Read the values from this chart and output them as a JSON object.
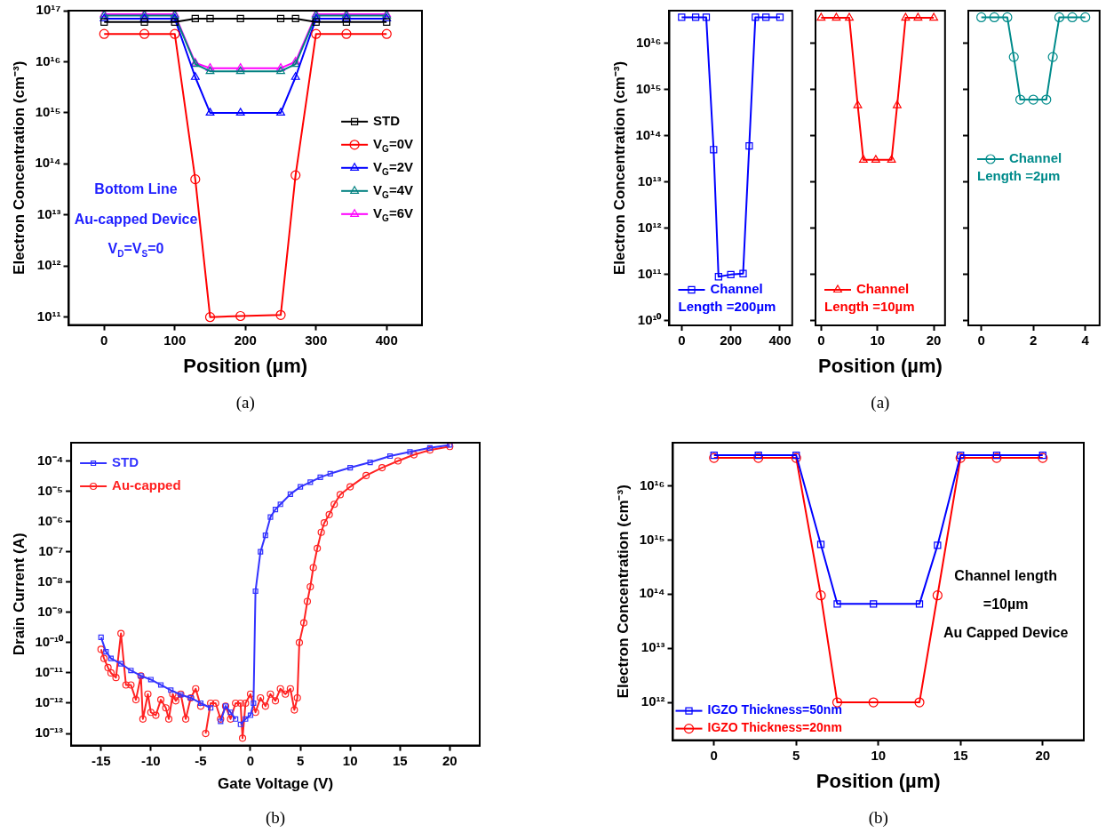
{
  "chart_data": [
    {
      "type": "line",
      "xlabel": "Position (µm)",
      "ylabel": "Electron Concentration (cm⁻³)",
      "log": true,
      "legend": "right",
      "xlim": [
        -50,
        450
      ],
      "xticks": [
        0,
        100,
        200,
        300,
        400
      ],
      "ylim": [
        70000000000.0,
        1e+17
      ],
      "yticks": [
        {
          "value": 100000000000.0,
          "label": "10¹¹"
        },
        {
          "value": 1000000000000.0,
          "label": "10¹²"
        },
        {
          "value": 10000000000000.0,
          "label": "10¹³"
        },
        {
          "value": 100000000000000.0,
          "label": "10¹⁴"
        },
        {
          "value": 1000000000000000.0,
          "label": "10¹⁵"
        },
        {
          "value": 1e+16,
          "label": "10¹⁶"
        },
        {
          "value": 1e+17,
          "label": "10¹⁷"
        }
      ],
      "x": [
        0,
        57,
        100,
        129,
        150,
        193,
        250,
        271,
        300,
        343,
        400
      ],
      "series": [
        {
          "name": "STD",
          "color": "#000000",
          "marker": "square",
          "values": [
            6e+16,
            6e+16,
            6e+16,
            7e+16,
            7e+16,
            7e+16,
            7e+16,
            7e+16,
            6e+16,
            6e+16,
            6e+16
          ]
        },
        {
          "name": "V$_{G}$=0V",
          "color": "#ff0000",
          "marker": "circle",
          "values": [
            3.5e+16,
            3.5e+16,
            3.5e+16,
            50000000000000.0,
            100000000000.0,
            105000000000.0,
            110000000000.0,
            60000000000000.0,
            3.5e+16,
            3.5e+16,
            3.5e+16
          ]
        },
        {
          "name": "V$_{G}$=2V",
          "color": "#0000ff",
          "marker": "triangle",
          "values": [
            7e+16,
            7e+16,
            7e+16,
            5000000000000000.0,
            1000000000000000.0,
            1000000000000000.0,
            1000000000000000.0,
            5000000000000000.0,
            7e+16,
            7e+16,
            7e+16
          ]
        },
        {
          "name": "V$_{G}$=4V",
          "color": "#008080",
          "marker": "triangle",
          "values": [
            8e+16,
            8e+16,
            8e+16,
            9000000000000000.0,
            6500000000000000.0,
            6500000000000000.0,
            6500000000000000.0,
            9000000000000000.0,
            8e+16,
            8e+16,
            8e+16
          ]
        },
        {
          "name": "V$_{G}$=6V",
          "color": "#ff00ff",
          "marker": "triangle",
          "values": [
            8.5e+16,
            8.5e+16,
            8.5e+16,
            9500000000000000.0,
            7500000000000000.0,
            7500000000000000.0,
            7500000000000000.0,
            1e+16,
            8.5e+16,
            8.5e+16,
            8.5e+16
          ]
        }
      ],
      "annotations": [
        "Bottom Line",
        "Au-capped Device",
        "V$_{D}$=V$_{S}$=0",
        "(a)"
      ]
    },
    {
      "type": "line",
      "ylabel": "Electron Concentration (cm⁻³)",
      "log": true,
      "legend": "bottom left",
      "xlim": [
        -50,
        450
      ],
      "xticks": [
        0,
        200,
        400
      ],
      "ylim": [
        8000000000.0,
        5e+16
      ],
      "yticks": [
        {
          "value": 10000000000.0,
          "label": "10¹⁰"
        },
        {
          "value": 100000000000.0,
          "label": "10¹¹"
        },
        {
          "value": 1000000000000.0,
          "label": "10¹²"
        },
        {
          "value": 10000000000000.0,
          "label": "10¹³"
        },
        {
          "value": 100000000000000.0,
          "label": "10¹⁴"
        },
        {
          "value": 1000000000000000.0,
          "label": "10¹⁵"
        },
        {
          "value": 1e+16,
          "label": "10¹⁶"
        }
      ],
      "x": [
        0,
        57,
        100,
        130,
        150,
        200,
        250,
        275,
        300,
        343,
        400
      ],
      "series": [
        {
          "name": "Channel Length =200µm",
          "color": "#0000ff",
          "marker": "square",
          "values": [
            3.6e+16,
            3.6e+16,
            3.6e+16,
            50000000000000.0,
            90000000000.0,
            100000000000.0,
            105000000000.0,
            60000000000000.0,
            3.6e+16,
            3.6e+16,
            3.6e+16
          ]
        }
      ]
    },
    {
      "type": "line",
      "xlabel": "Position (µm)",
      "log": true,
      "legend": "bottom left",
      "tick_labels": "x",
      "xlim": [
        -1,
        22
      ],
      "xticks": [
        0,
        10,
        20
      ],
      "ylim": [
        8000000000.0,
        5e+16
      ],
      "yticks": [
        {
          "value": 10000000000.0,
          "label": null
        },
        {
          "value": 100000000000.0,
          "label": null
        },
        {
          "value": 1000000000000.0,
          "label": null
        },
        {
          "value": 10000000000000.0,
          "label": null
        },
        {
          "value": 100000000000000.0,
          "label": null
        },
        {
          "value": 1000000000000000.0,
          "label": null
        },
        {
          "value": 1e+16,
          "label": null
        }
      ],
      "x": [
        0,
        2.7,
        5,
        6.5,
        7.5,
        9.7,
        12.5,
        13.5,
        15,
        17.2,
        20
      ],
      "series": [
        {
          "name": "Channel Length =10µm",
          "color": "#ff0000",
          "marker": "triangle",
          "values": [
            3.5e+16,
            3.5e+16,
            3.5e+16,
            450000000000000.0,
            30000000000000.0,
            30000000000000.0,
            30000000000000.0,
            450000000000000.0,
            3.5e+16,
            3.5e+16,
            3.5e+16
          ]
        }
      ],
      "annotations": [
        "(a)"
      ]
    },
    {
      "type": "line",
      "log": true,
      "legend": "left",
      "tick_labels": "x",
      "xlim": [
        -0.5,
        4.55
      ],
      "xticks": [
        0,
        2,
        4
      ],
      "ylim": [
        8000000000.0,
        5e+16
      ],
      "yticks": [
        {
          "value": 10000000000.0,
          "label": null
        },
        {
          "value": 100000000000.0,
          "label": null
        },
        {
          "value": 1000000000000.0,
          "label": null
        },
        {
          "value": 10000000000000.0,
          "label": null
        },
        {
          "value": 100000000000000.0,
          "label": null
        },
        {
          "value": 1000000000000000.0,
          "label": null
        },
        {
          "value": 1e+16,
          "label": null
        }
      ],
      "x": [
        0,
        0.5,
        1,
        1.25,
        1.5,
        2,
        2.5,
        2.75,
        3,
        3.5,
        4
      ],
      "series": [
        {
          "name": "Channel Length =2µm",
          "color": "#008b8b",
          "marker": "circle",
          "values": [
            3.6e+16,
            3.6e+16,
            3.6e+16,
            5000000000000000.0,
            600000000000000.0,
            600000000000000.0,
            600000000000000.0,
            5000000000000000.0,
            3.6e+16,
            3.6e+16,
            3.6e+16
          ]
        }
      ]
    },
    {
      "type": "line",
      "xlabel": "Gate Voltage (V)",
      "ylabel": "Drain Current (A)",
      "log": true,
      "legend": "top left",
      "xlim": [
        -18,
        23
      ],
      "xticks": [
        -15,
        -10,
        -5,
        0,
        5,
        10,
        15,
        20
      ],
      "ylim": [
        4e-14,
        0.0004
      ],
      "yticks": [
        {
          "value": 1e-13,
          "label": "10⁻¹³"
        },
        {
          "value": 1e-12,
          "label": "10⁻¹²"
        },
        {
          "value": 1e-11,
          "label": "10⁻¹¹"
        },
        {
          "value": 1e-10,
          "label": "10⁻¹⁰"
        },
        {
          "value": 1e-09,
          "label": "10⁻⁹"
        },
        {
          "value": 1e-08,
          "label": "10⁻⁸"
        },
        {
          "value": 1e-07,
          "label": "10⁻⁷"
        },
        {
          "value": 1e-06,
          "label": "10⁻⁶"
        },
        {
          "value": 1e-05,
          "label": "10⁻⁵"
        },
        {
          "value": 0.0001,
          "label": "10⁻⁴"
        }
      ],
      "series": [
        {
          "name": "STD",
          "color": "#3333ff",
          "marker": "square",
          "x": [
            -15,
            -14.5,
            -14,
            -13,
            -12,
            -11,
            -10,
            -9,
            -8,
            -7,
            -6,
            -5,
            -4,
            -3.5,
            -3,
            -2.5,
            -2,
            -1.5,
            -1.3,
            -1,
            -0.5,
            0,
            0.3,
            0.5,
            1,
            1.5,
            2,
            2.5,
            3,
            4,
            5,
            6,
            7,
            8,
            10,
            12,
            14,
            16,
            18,
            20
          ],
          "values": [
            1.5e-10,
            5e-11,
            3e-11,
            2e-11,
            1.2e-11,
            8e-12,
            6e-12,
            4e-12,
            2.7e-12,
            1.9e-12,
            1.5e-12,
            1e-12,
            7e-13,
            null,
            2.5e-13,
            8e-13,
            5e-13,
            3e-13,
            null,
            2e-13,
            3e-13,
            4e-13,
            1e-12,
            5e-09,
            1e-07,
            3.5e-07,
            1.4e-06,
            2.5e-06,
            3.7e-06,
            8e-06,
            1.4e-05,
            2e-05,
            2.9e-05,
            3.8e-05,
            6e-05,
            9e-05,
            0.000145,
            0.0002,
            0.00027,
            0.00034
          ]
        },
        {
          "name": "Au-capped",
          "color": "#ff2222",
          "marker": "circle",
          "x": [
            -15,
            -14.7,
            -14.3,
            -14,
            -13.5,
            -13,
            -12.5,
            -12,
            -11.5,
            -11,
            -10.8,
            -10.3,
            -10,
            -9.5,
            -9,
            -8.5,
            -8.2,
            -7.8,
            -7.5,
            -7,
            -6.5,
            -6,
            -5.5,
            -5,
            -4.8,
            -4.5,
            -4,
            -3.5,
            -3,
            -2.5,
            -2,
            -1.5,
            -1,
            -0.8,
            -0.5,
            0,
            0.5,
            1,
            1.5,
            2,
            2.5,
            3,
            3.5,
            4,
            4.4,
            4.7,
            4.9,
            5.35,
            5.7,
            6,
            6.3,
            6.7,
            7.1,
            7.4,
            7.9,
            8.4,
            9,
            10,
            11.6,
            13.2,
            14.8,
            16.4,
            18,
            20
          ],
          "values": [
            6e-11,
            3e-11,
            1.5e-11,
            1e-11,
            7e-12,
            2e-10,
            4e-12,
            4e-12,
            1.3e-12,
            8e-12,
            3e-13,
            2e-12,
            5e-13,
            4e-13,
            1.3e-12,
            7e-13,
            3e-13,
            2e-12,
            1.2e-12,
            2e-12,
            3e-13,
            1.5e-12,
            3e-12,
            8e-13,
            null,
            1e-13,
            1e-12,
            1e-12,
            3e-13,
            8e-13,
            3e-13,
            1e-12,
            1e-12,
            7e-14,
            1e-12,
            2e-12,
            5e-13,
            1.5e-12,
            8e-13,
            2e-12,
            1.2e-12,
            3e-12,
            2e-12,
            3e-12,
            6e-13,
            1.5e-12,
            1e-10,
            4.5e-10,
            2.3e-09,
            7e-09,
            3e-08,
            1.3e-07,
            4.4e-07,
            9e-07,
            1.7e-06,
            3.7e-06,
            7.7e-06,
            1.4e-05,
            3.3e-05,
            6e-05,
            0.0001,
            0.00016,
            0.00023,
            0.0003
          ]
        }
      ],
      "annotations": [
        "(b)"
      ]
    },
    {
      "type": "line",
      "xlabel": "Position (µm)",
      "ylabel": "Electron Concentration (cm⁻³)",
      "log": true,
      "legend": "bottom left",
      "xlim": [
        -2.5,
        22.5
      ],
      "xticks": [
        0,
        5,
        10,
        15,
        20
      ],
      "ylim": [
        200000000000.0,
        6.3e+16
      ],
      "yticks": [
        {
          "value": 1000000000000.0,
          "label": "10¹²"
        },
        {
          "value": 10000000000000.0,
          "label": "10¹³"
        },
        {
          "value": 100000000000000.0,
          "label": "10¹⁴"
        },
        {
          "value": 1000000000000000.0,
          "label": "10¹⁵"
        },
        {
          "value": 1e+16,
          "label": "10¹⁶"
        }
      ],
      "x": [
        0,
        2.7,
        5,
        6.5,
        7.5,
        9.7,
        12.5,
        13.6,
        15,
        17.2,
        20
      ],
      "series": [
        {
          "name": "IGZO Thickness=50nm",
          "color": "#0000ff",
          "marker": "square",
          "values": [
            3.7e+16,
            3.7e+16,
            3.7e+16,
            830000000000000.0,
            66000000000000.0,
            66000000000000.0,
            66000000000000.0,
            800000000000000.0,
            3.7e+16,
            3.7e+16,
            3.7e+16
          ]
        },
        {
          "name": "IGZO Thickness=20nm",
          "color": "#ff0000",
          "marker": "circle",
          "values": [
            3.3e+16,
            3.3e+16,
            3.3e+16,
            95000000000000.0,
            1000000000000.0,
            1000000000000.0,
            1000000000000.0,
            95000000000000.0,
            3.3e+16,
            3.3e+16,
            3.3e+16
          ]
        }
      ],
      "annotations": [
        "Channel length",
        "=10µm",
        "Au Capped Device",
        "(b)"
      ]
    }
  ]
}
